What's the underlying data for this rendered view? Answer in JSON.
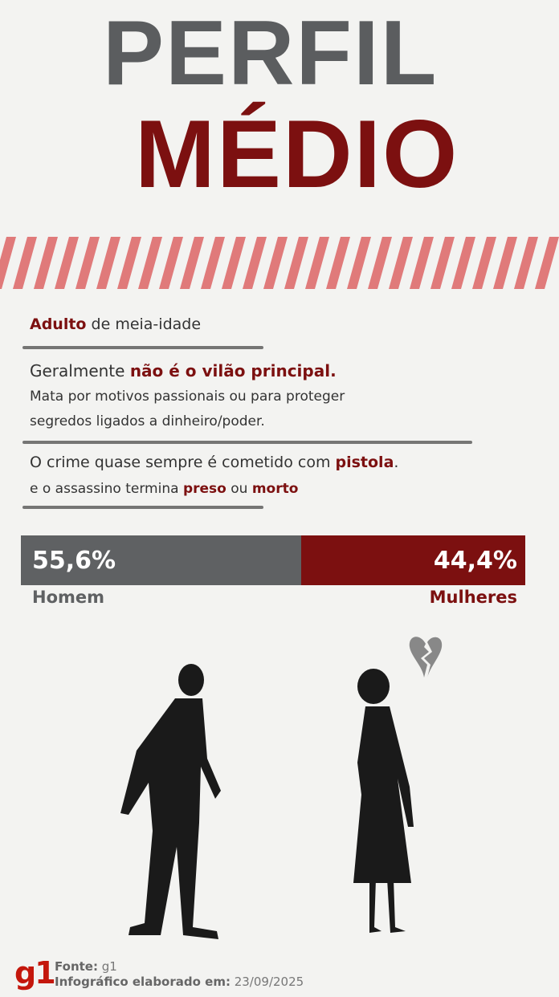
{
  "title": {
    "line1": "PERFIL",
    "line2": "MÉDIO"
  },
  "profile": {
    "age": {
      "highlight": "Adulto",
      "rest": " de meia-idade"
    },
    "role": {
      "prefix": "Geralmente ",
      "highlight": "não é o vilão principal."
    },
    "motive_line1": "Mata por motivos passionais ou para proteger",
    "motive_line2": "segredos ligados a dinheiro/poder.",
    "weapon": {
      "prefix": "O crime quase sempre é cometido com ",
      "highlight": "pistola",
      "suffix": "."
    },
    "outcome": {
      "prefix": "e o assassino termina ",
      "highlight1": "preso",
      "middle": " ou ",
      "highlight2": "morto"
    }
  },
  "chart_data": {
    "type": "bar",
    "orientation": "horizontal-stacked",
    "categories": [
      "Homem",
      "Mulheres"
    ],
    "values": [
      55.6,
      44.4
    ],
    "value_labels": [
      "55,6%",
      "44,4%"
    ],
    "colors": [
      "#5f6163",
      "#7c1010"
    ],
    "xlim": [
      0,
      100
    ]
  },
  "footer": {
    "logo": "g1",
    "source_label": "Fonte:",
    "source_value": " g1",
    "date_label": "Infográfico elaborado em:",
    "date_value": " 23/09/2025"
  },
  "colors": {
    "accent": "#7c1010",
    "grey": "#5b5d5f",
    "stripe": "#e07a7a"
  }
}
